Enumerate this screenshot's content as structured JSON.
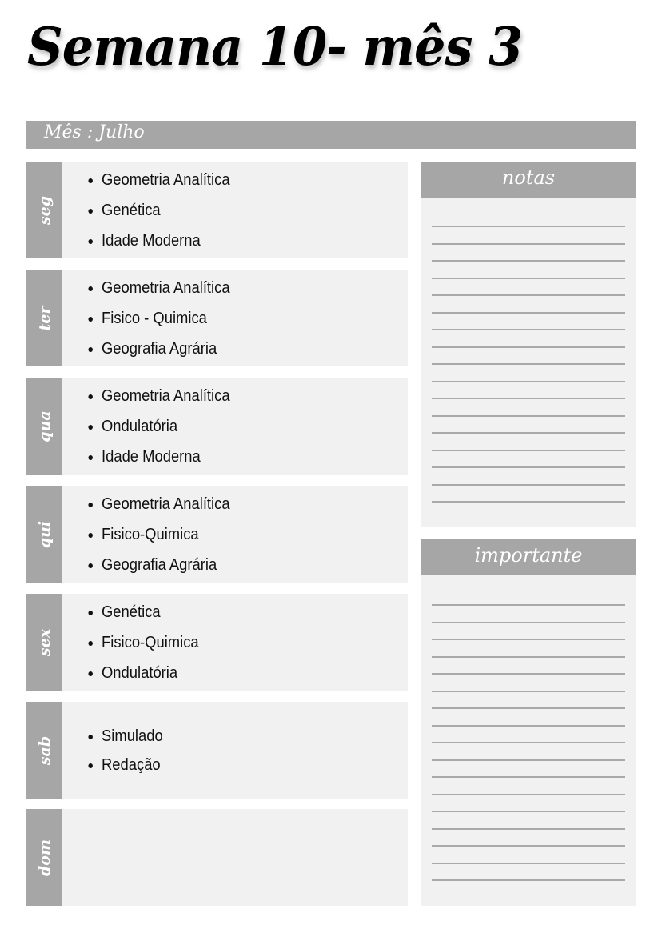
{
  "title": "Semana 10- mês 3",
  "month_label": "Mês : Julho",
  "days": [
    {
      "label": "seg",
      "items": [
        "Geometria Analítica",
        "Genética",
        "Idade Moderna"
      ]
    },
    {
      "label": "ter",
      "items": [
        "Geometria Analítica",
        "Fisico - Quimica",
        "Geografia Agrária"
      ]
    },
    {
      "label": "qua",
      "items": [
        "Geometria Analítica",
        "Ondulatória",
        "Idade Moderna"
      ]
    },
    {
      "label": "qui",
      "items": [
        "Geometria Analítica",
        "Fisico-Quimica",
        "Geografia Agrária"
      ]
    },
    {
      "label": "sex",
      "items": [
        "Genética",
        "Fisico-Quimica",
        "Ondulatória"
      ]
    },
    {
      "label": "sab",
      "items": [
        "Simulado",
        "Redação"
      ]
    },
    {
      "label": "dom",
      "items": []
    }
  ],
  "notes": {
    "title": "notas"
  },
  "important": {
    "title": "importante"
  },
  "colors": {
    "header_gray": "#a6a6a6",
    "panel_bg": "#f1f1f1",
    "line": "#a9a9a9"
  }
}
